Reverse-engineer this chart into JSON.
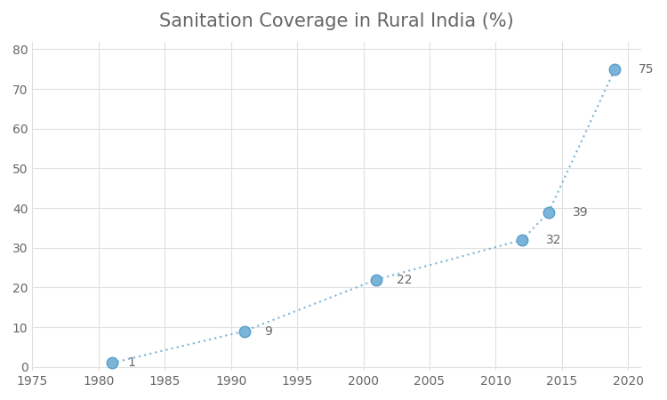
{
  "title": "Sanitation Coverage in Rural India (%)",
  "x": [
    1981,
    1991,
    2001,
    2012,
    2014,
    2019
  ],
  "y": [
    1,
    9,
    22,
    32,
    39,
    75
  ],
  "labels": [
    "1",
    "9",
    "22",
    "32",
    "39",
    "75"
  ],
  "label_offsets_x": [
    1.2,
    1.5,
    1.5,
    1.8,
    1.8,
    1.8
  ],
  "label_offsets_y": [
    0.0,
    0.0,
    0.0,
    0.0,
    0.0,
    0.0
  ],
  "xlim": [
    1975,
    2021
  ],
  "ylim": [
    -1,
    82
  ],
  "xticks": [
    1975,
    1980,
    1985,
    1990,
    1995,
    2000,
    2005,
    2010,
    2015,
    2020
  ],
  "yticks": [
    0,
    10,
    20,
    30,
    40,
    50,
    60,
    70,
    80
  ],
  "line_color": "#7ab4d8",
  "marker_color": "#7ab4d8",
  "marker_edge_color": "#5a9ec8",
  "label_color": "#666666",
  "title_color": "#666666",
  "title_fontsize": 15,
  "label_fontsize": 10,
  "tick_fontsize": 10,
  "tick_color": "#666666",
  "bg_color": "#ffffff",
  "plot_bg_color": "#ffffff",
  "grid_color": "#e0e0e0"
}
